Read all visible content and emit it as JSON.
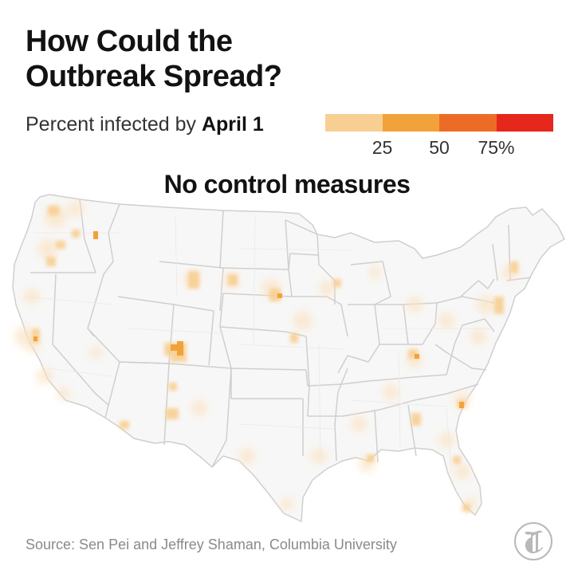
{
  "header": {
    "title_line1": "How Could the",
    "title_line2": "Outbreak Spread?"
  },
  "legend": {
    "label_prefix": "Percent infected by",
    "label_date": "April 1",
    "colors": [
      "#f8cf92",
      "#f2a23a",
      "#ec6c27",
      "#e6271b"
    ],
    "ticks": [
      {
        "value": 25,
        "label": "25"
      },
      {
        "value": 50,
        "label": "50"
      },
      {
        "value": 75,
        "label": "75%"
      }
    ]
  },
  "map": {
    "subtitle": "No control measures",
    "region": "Contiguous United States",
    "boundaries": "state and county lines",
    "hotspot_colors": [
      "#fbe3c2",
      "#f8cf92",
      "#f2a23a"
    ]
  },
  "footer": {
    "source": "Source: Sen Pei and Jeffrey Shaman, Columbia University",
    "logo": "new-york-times-t-logo"
  }
}
